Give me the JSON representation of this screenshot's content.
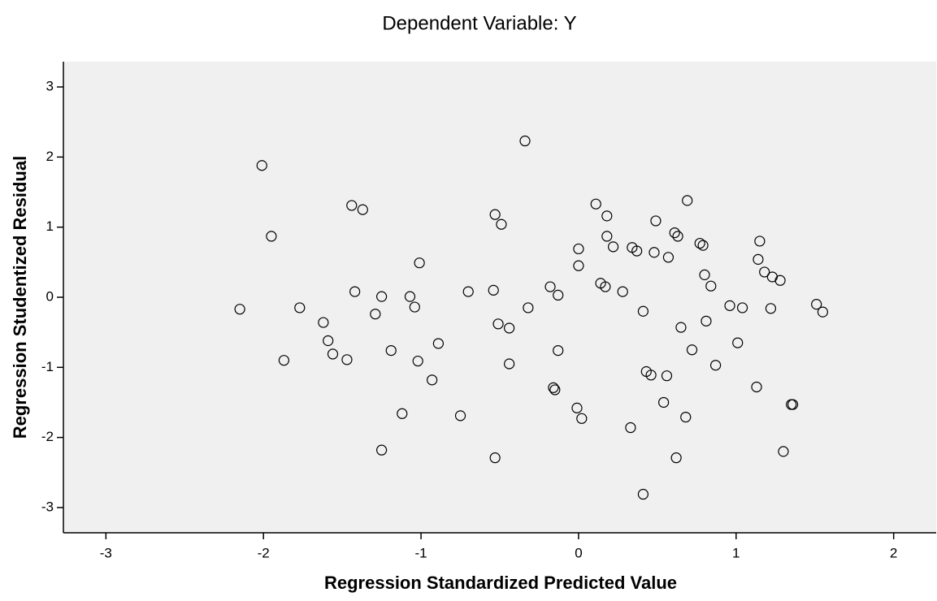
{
  "chart_data": {
    "type": "scatter",
    "title": "Dependent Variable: Y",
    "x_label": "Regression Standardized Predicted Value",
    "y_label": "Regression Studentized Residual",
    "xlim": [
      -3.27,
      2.27
    ],
    "ylim": [
      -3.36,
      3.36
    ],
    "xticks": [
      -3,
      -2,
      -1,
      0,
      1,
      2
    ],
    "yticks": [
      -3,
      -2,
      -1,
      0,
      1,
      2,
      3
    ],
    "color": "#000000",
    "x": [
      -2.15,
      -2.01,
      -1.95,
      -1.87,
      -1.77,
      -1.62,
      -1.59,
      -1.56,
      -1.47,
      -1.44,
      -1.42,
      -1.37,
      -1.29,
      -1.25,
      -1.25,
      -1.19,
      -1.12,
      -1.07,
      -1.04,
      -1.02,
      -1.01,
      -0.93,
      -0.89,
      -0.75,
      -0.7,
      -0.54,
      -0.53,
      -0.53,
      -0.51,
      -0.49,
      -0.44,
      -0.44,
      -0.34,
      -0.32,
      -0.18,
      -0.16,
      -0.15,
      -0.13,
      -0.13,
      -0.01,
      0.0,
      0.0,
      0.02,
      0.11,
      0.14,
      0.17,
      0.18,
      0.18,
      0.22,
      0.28,
      0.33,
      0.34,
      0.37,
      0.41,
      0.41,
      0.43,
      0.46,
      0.48,
      0.49,
      0.54,
      0.56,
      0.57,
      0.61,
      0.62,
      0.63,
      0.65,
      0.68,
      0.69,
      0.72,
      0.77,
      0.79,
      0.8,
      0.81,
      0.84,
      0.87,
      0.96,
      1.01,
      1.04,
      1.13,
      1.14,
      1.15,
      1.18,
      1.22,
      1.23,
      1.28,
      1.3,
      1.35,
      1.36,
      1.51,
      1.55
    ],
    "values": [
      -0.17,
      1.88,
      0.87,
      -0.9,
      -0.15,
      -0.36,
      -0.62,
      -0.81,
      -0.89,
      1.31,
      0.08,
      1.25,
      -0.24,
      0.01,
      -2.18,
      -0.76,
      -1.66,
      0.01,
      -0.14,
      -0.91,
      0.49,
      -1.18,
      -0.66,
      -1.69,
      0.08,
      0.1,
      1.18,
      -2.29,
      -0.38,
      1.04,
      -0.44,
      -0.95,
      2.23,
      -0.15,
      0.15,
      -1.29,
      -1.32,
      0.03,
      -0.76,
      -1.58,
      0.69,
      0.45,
      -1.73,
      1.33,
      0.2,
      0.15,
      1.16,
      0.87,
      0.72,
      0.08,
      -1.86,
      0.71,
      0.66,
      -2.81,
      -0.2,
      -1.06,
      -1.11,
      0.64,
      1.09,
      -1.5,
      -1.12,
      0.57,
      0.92,
      -2.29,
      0.87,
      -0.43,
      -1.71,
      1.38,
      -0.75,
      0.77,
      0.74,
      0.32,
      -0.34,
      0.16,
      -0.97,
      -0.12,
      -0.65,
      -0.15,
      -1.28,
      0.54,
      0.8,
      0.36,
      -0.16,
      0.29,
      0.24,
      -2.2,
      -1.53,
      -1.53,
      -0.1,
      -0.21
    ]
  }
}
